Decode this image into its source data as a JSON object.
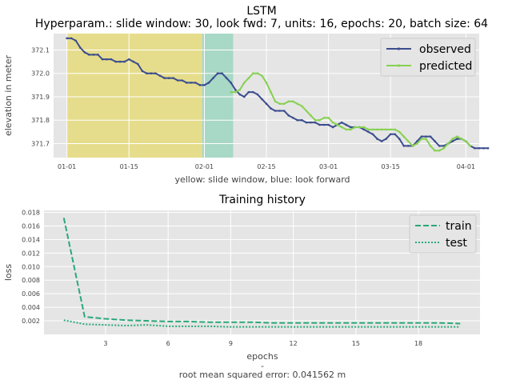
{
  "figure": {
    "main_title": "LSTM",
    "main_subtitle": "Hyperparam.: slide window: 30, look fwd: 7, units: 16, epochs: 20, batch size: 64"
  },
  "chart_data": [
    {
      "type": "line",
      "title": "",
      "xlabel": "yellow: slide window, blue: look forward",
      "ylabel": "elevation in meter",
      "x_ticks": [
        "01-01",
        "01-15",
        "02-01",
        "02-15",
        "03-01",
        "03-15",
        "04-01"
      ],
      "x_tick_days": [
        0,
        14,
        31,
        45,
        59,
        73,
        90
      ],
      "xlim_days": [
        -3,
        93
      ],
      "y_ticks": [
        371.7,
        371.8,
        371.9,
        372.0,
        372.1
      ],
      "ylim": [
        371.64,
        372.17
      ],
      "grid": true,
      "legend_position": "top-right",
      "shaded_regions": [
        {
          "label": "yellow: slide window",
          "start_day": 0,
          "end_day": 30.5,
          "color": "#e6dd8c"
        },
        {
          "label": "blue: look forward",
          "start_day": 30.5,
          "end_day": 37.5,
          "color": "#a8d8c6"
        }
      ],
      "series": [
        {
          "name": "observed",
          "color": "#3b4d8e",
          "start_day": 0,
          "values": [
            372.15,
            372.15,
            372.14,
            372.11,
            372.09,
            372.08,
            372.08,
            372.08,
            372.06,
            372.06,
            372.06,
            372.05,
            372.05,
            372.05,
            372.06,
            372.05,
            372.04,
            372.01,
            372.0,
            372.0,
            372.0,
            371.99,
            371.98,
            371.98,
            371.98,
            371.97,
            371.97,
            371.96,
            371.96,
            371.96,
            371.95,
            371.95,
            371.96,
            371.98,
            372.0,
            372.0,
            371.98,
            371.96,
            371.93,
            371.91,
            371.9,
            371.92,
            371.92,
            371.91,
            371.89,
            371.87,
            371.85,
            371.84,
            371.84,
            371.84,
            371.82,
            371.81,
            371.8,
            371.8,
            371.79,
            371.79,
            371.79,
            371.78,
            371.78,
            371.78,
            371.77,
            371.78,
            371.79,
            371.78,
            371.77,
            371.77,
            371.77,
            371.76,
            371.75,
            371.74,
            371.72,
            371.71,
            371.72,
            371.74,
            371.74,
            371.72,
            371.69,
            371.69,
            371.69,
            371.71,
            371.73,
            371.73,
            371.73,
            371.71,
            371.69,
            371.69,
            371.7,
            371.71,
            371.72,
            371.72,
            371.71,
            371.69,
            371.68,
            371.68,
            371.68,
            371.68
          ]
        },
        {
          "name": "predicted",
          "color": "#87d152",
          "start_day": 37,
          "values": [
            371.92,
            371.92,
            371.93,
            371.96,
            371.98,
            372.0,
            372.0,
            371.99,
            371.96,
            371.92,
            371.88,
            371.87,
            371.87,
            371.88,
            371.88,
            371.87,
            371.86,
            371.84,
            371.82,
            371.8,
            371.8,
            371.81,
            371.81,
            371.79,
            371.78,
            371.77,
            371.76,
            371.76,
            371.77,
            371.77,
            371.77,
            371.76,
            371.76,
            371.76,
            371.76,
            371.76,
            371.76,
            371.76,
            371.75,
            371.73,
            371.71,
            371.69,
            371.7,
            371.72,
            371.72,
            371.69,
            371.67,
            371.67,
            371.68,
            371.7,
            371.72,
            371.73,
            371.72,
            371.71,
            371.69
          ]
        }
      ]
    },
    {
      "type": "line",
      "title": "Training history",
      "xlabel": "epochs",
      "footer_separator": "-",
      "footer": "root mean squared error: 0.041562 m",
      "ylabel": "loss",
      "x_ticks": [
        3,
        6,
        9,
        12,
        15,
        18
      ],
      "xlim": [
        0.05,
        20.95
      ],
      "y_ticks": [
        0.002,
        0.004,
        0.006,
        0.008,
        0.01,
        0.012,
        0.014,
        0.016,
        0.018
      ],
      "y_tick_labels": [
        "0.002",
        "0.004",
        "0.006",
        "0.008",
        "0.010",
        "0.012",
        "0.014",
        "0.016",
        "0.018"
      ],
      "ylim": [
        0.0,
        0.0183
      ],
      "grid": true,
      "legend_position": "top-right",
      "series": [
        {
          "name": "train",
          "style": "dashed",
          "color": "#2aa87a",
          "x": [
            1,
            2,
            3,
            4,
            5,
            6,
            7,
            8,
            9,
            10,
            11,
            12,
            13,
            14,
            15,
            16,
            17,
            18,
            19,
            20
          ],
          "values": [
            0.0172,
            0.0026,
            0.0023,
            0.0021,
            0.002,
            0.0019,
            0.0019,
            0.0018,
            0.0018,
            0.0018,
            0.0017,
            0.0017,
            0.0017,
            0.0017,
            0.0017,
            0.0017,
            0.0017,
            0.0017,
            0.0017,
            0.0016
          ]
        },
        {
          "name": "test",
          "style": "dotted",
          "color": "#2aa87a",
          "x": [
            1,
            2,
            3,
            4,
            5,
            6,
            7,
            8,
            9,
            10,
            11,
            12,
            13,
            14,
            15,
            16,
            17,
            18,
            19,
            20
          ],
          "values": [
            0.0021,
            0.0015,
            0.0014,
            0.0013,
            0.0014,
            0.0012,
            0.0012,
            0.0012,
            0.0011,
            0.0011,
            0.0011,
            0.0011,
            0.0011,
            0.0011,
            0.0011,
            0.0011,
            0.0011,
            0.0011,
            0.0011,
            0.0011
          ]
        }
      ]
    }
  ]
}
